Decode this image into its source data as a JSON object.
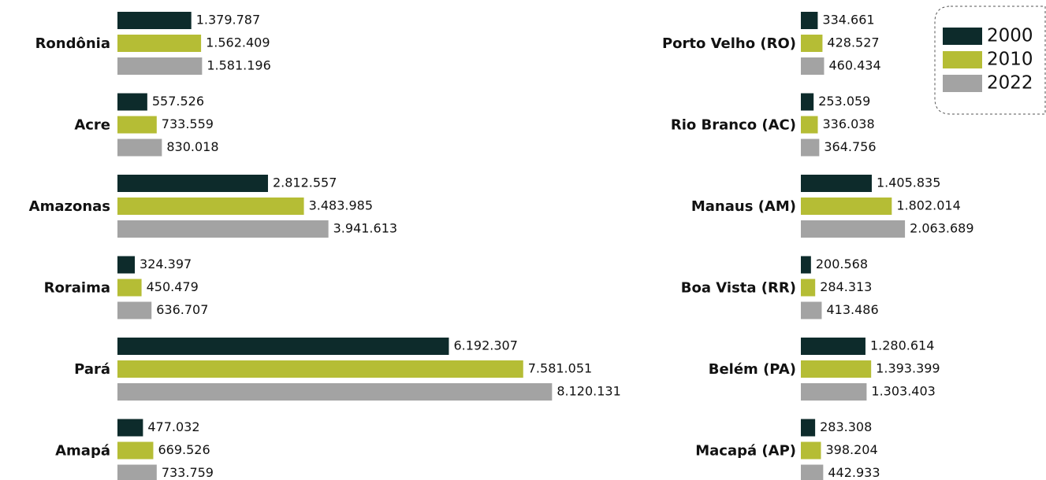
{
  "chart_data": [
    {
      "type": "bar",
      "orientation": "horizontal",
      "categories": [
        "Rondônia",
        "Acre",
        "Amazonas",
        "Roraima",
        "Pará",
        "Amapá"
      ],
      "xlim": [
        0,
        10000000
      ],
      "series": [
        {
          "name": "2000",
          "color": "#0d2b2b",
          "values": [
            1379787,
            557526,
            2812557,
            324397,
            6192307,
            477032
          ],
          "value_labels": [
            "1.379.787",
            "557.526",
            "2.812.557",
            "324.397",
            "6.192.307",
            "477.032"
          ]
        },
        {
          "name": "2010",
          "color": "#b5bd35",
          "values": [
            1562409,
            733559,
            3483985,
            450479,
            7581051,
            669526
          ],
          "value_labels": [
            "1.562.409",
            "733.559",
            "3.483.985",
            "450.479",
            "7.581.051",
            "669.526"
          ]
        },
        {
          "name": "2022",
          "color": "#a3a3a3",
          "values": [
            1581196,
            830018,
            3941613,
            636707,
            8120131,
            733759
          ],
          "value_labels": [
            "1.581.196",
            "830.018",
            "3.941.613",
            "636.707",
            "8.120.131",
            "733.759"
          ]
        }
      ]
    },
    {
      "type": "bar",
      "orientation": "horizontal",
      "categories": [
        "Porto Velho (RO)",
        "Rio Branco (AC)",
        "Manaus (AM)",
        "Boa Vista (RR)",
        "Belém (PA)",
        "Macapá (AP)"
      ],
      "xlim": [
        0,
        4000000
      ],
      "legend": "top-right",
      "series": [
        {
          "name": "2000",
          "color": "#0d2b2b",
          "values": [
            334661,
            253059,
            1405835,
            200568,
            1280614,
            283308
          ],
          "value_labels": [
            "334.661",
            "253.059",
            "1.405.835",
            "200.568",
            "1.280.614",
            "283.308"
          ]
        },
        {
          "name": "2010",
          "color": "#b5bd35",
          "values": [
            428527,
            336038,
            1802014,
            284313,
            1393399,
            398204
          ],
          "value_labels": [
            "428.527",
            "336.038",
            "1.802.014",
            "284.313",
            "1.393.399",
            "398.204"
          ]
        },
        {
          "name": "2022",
          "color": "#a3a3a3",
          "values": [
            460434,
            364756,
            2063689,
            413486,
            1303403,
            442933
          ],
          "value_labels": [
            "460.434",
            "364.756",
            "2.063.689",
            "413.486",
            "1.303.403",
            "442.933"
          ]
        }
      ]
    }
  ]
}
